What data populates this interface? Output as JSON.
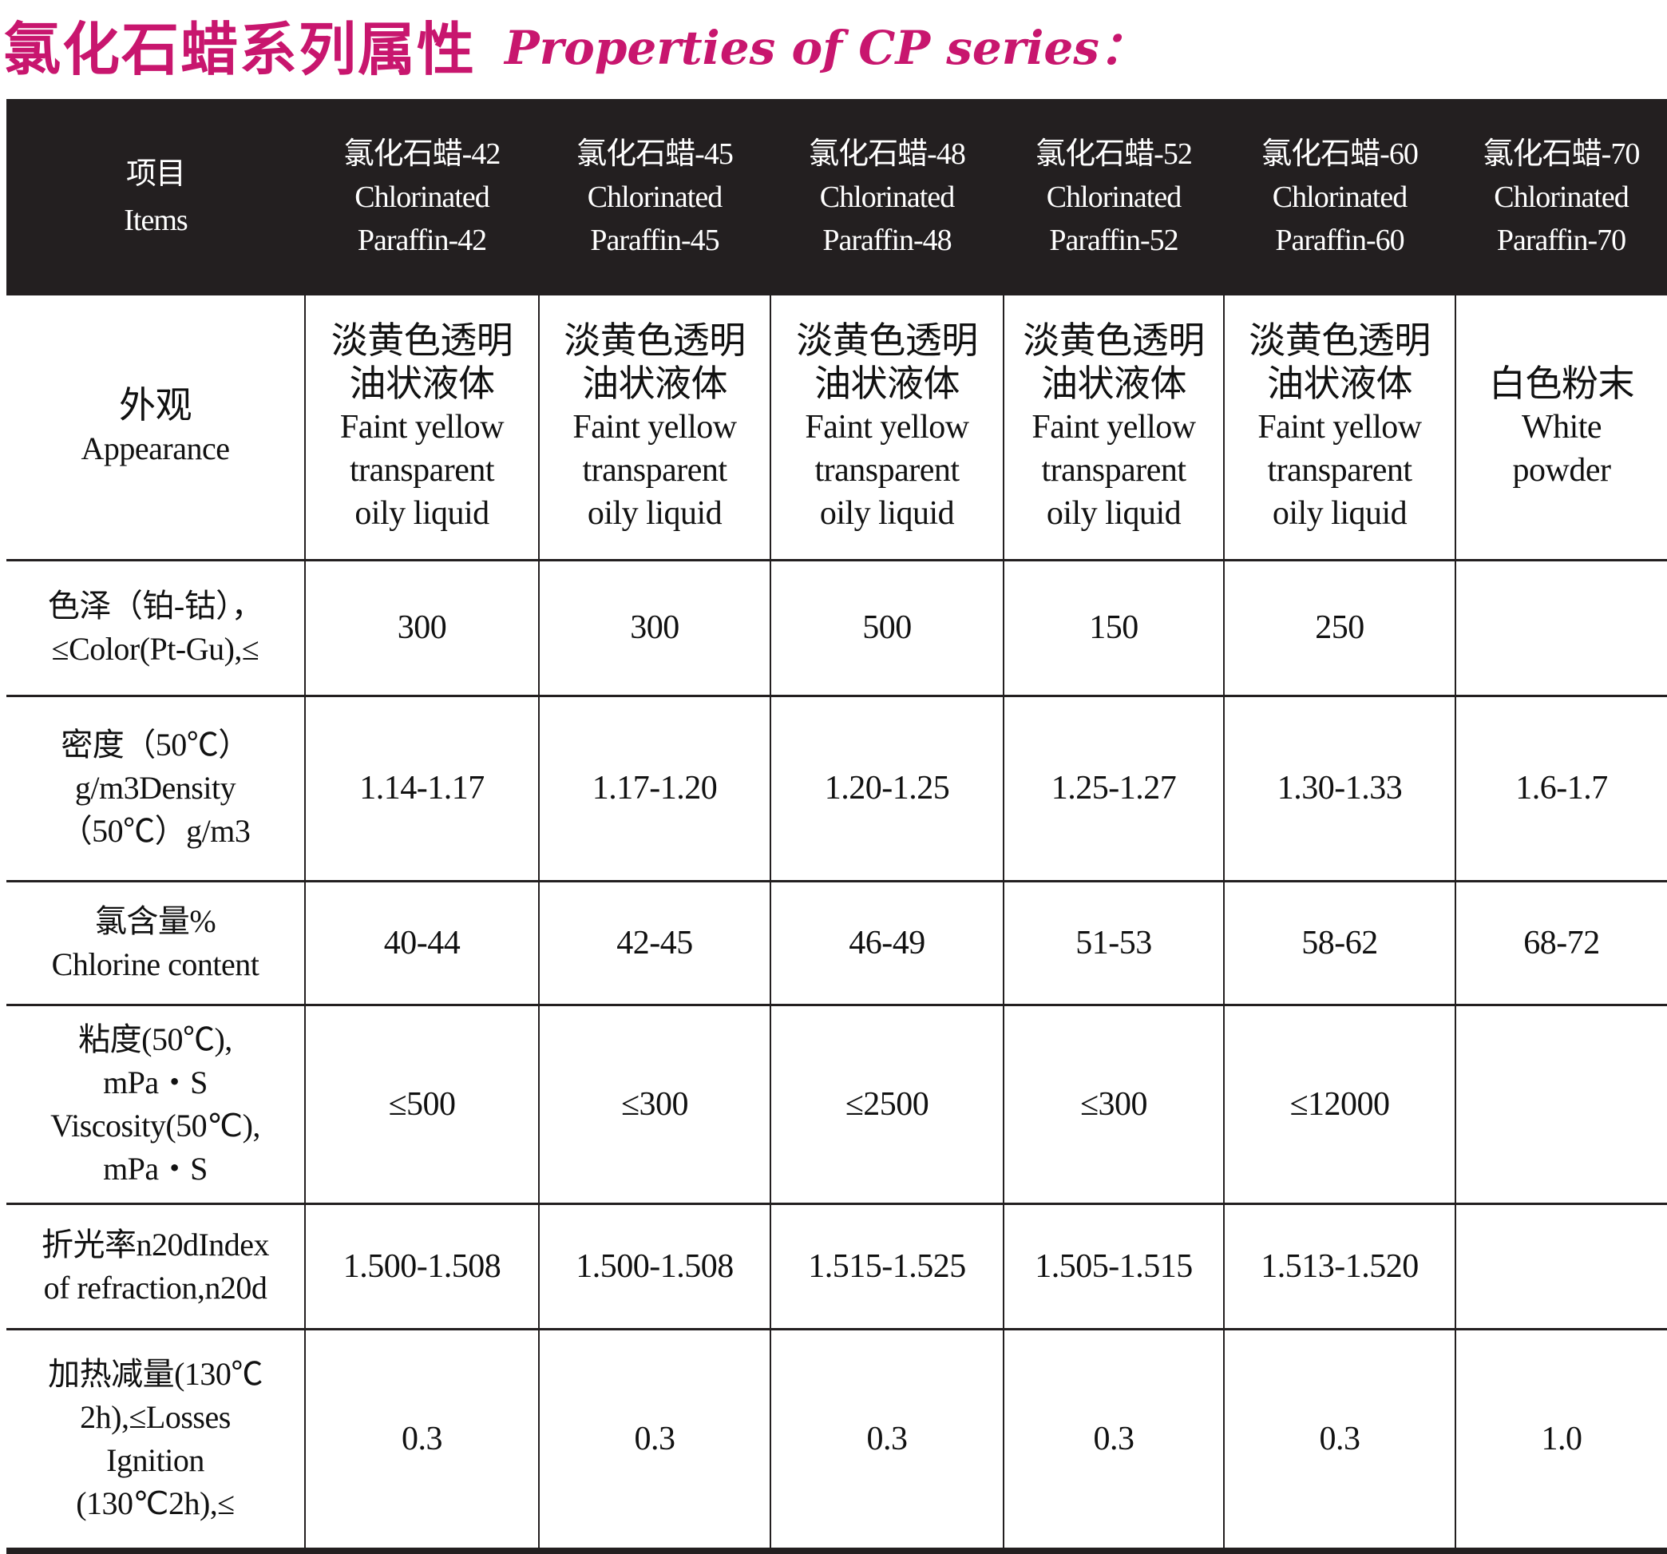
{
  "title": {
    "cn": "氯化石蜡系列属性",
    "en": "Properties of CP series："
  },
  "header": {
    "items": {
      "cn": "项目",
      "en": "Items"
    },
    "products": [
      {
        "cn": "氯化石蜡-42",
        "en1": "Chlorinated",
        "en2": "Paraffin-42"
      },
      {
        "cn": "氯化石蜡-45",
        "en1": "Chlorinated",
        "en2": "Paraffin-45"
      },
      {
        "cn": "氯化石蜡-48",
        "en1": "Chlorinated",
        "en2": "Paraffin-48"
      },
      {
        "cn": "氯化石蜡-52",
        "en1": "Chlorinated",
        "en2": "Paraffin-52"
      },
      {
        "cn": "氯化石蜡-60",
        "en1": "Chlorinated",
        "en2": "Paraffin-60"
      },
      {
        "cn": "氯化石蜡-70",
        "en1": "Chlorinated",
        "en2": "Paraffin-70"
      }
    ]
  },
  "appearance": {
    "label": {
      "cn": "外观",
      "en": "Appearance"
    },
    "liquid": {
      "cn1": "淡黄色透明",
      "cn2": "油状液体",
      "en1": "Faint yellow",
      "en2": "transparent",
      "en3": "oily liquid"
    },
    "powder": {
      "cn": "白色粉末",
      "en1": "White",
      "en2": "powder"
    }
  },
  "rows": {
    "color": {
      "label1": "色泽（铂-钴），",
      "label2": "≤Color(Pt-Gu),≤",
      "values": [
        "300",
        "300",
        "500",
        "150",
        "250",
        ""
      ]
    },
    "density": {
      "label1": "密度（50℃）",
      "label2": "g/m3Density",
      "label3": "（50℃）g/m3",
      "values": [
        "1.14-1.17",
        "1.17-1.20",
        "1.20-1.25",
        "1.25-1.27",
        "1.30-1.33",
        "1.6-1.7"
      ]
    },
    "chlorine": {
      "label1": "氯含量%",
      "label2": "Chlorine content",
      "values": [
        "40-44",
        "42-45",
        "46-49",
        "51-53",
        "58-62",
        "68-72"
      ]
    },
    "viscosity": {
      "label1": "粘度(50℃),",
      "label2": "mPa・S",
      "label3": "Viscosity(50℃),",
      "label4": "mPa・S",
      "values": [
        "≤500",
        "≤300",
        "≤2500",
        "≤300",
        "≤12000",
        ""
      ]
    },
    "refraction": {
      "label1": "折光率n20dIndex",
      "label2": "of refraction,n20d",
      "values": [
        "1.500-1.508",
        "1.500-1.508",
        "1.515-1.525",
        "1.505-1.515",
        "1.513-1.520",
        ""
      ]
    },
    "losses": {
      "label1": "加热减量(130℃",
      "label2": "2h),≤Losses",
      "label3": "Ignition",
      "label4": "(130℃2h),≤",
      "values": [
        "0.3",
        "0.3",
        "0.3",
        "0.3",
        "0.3",
        "1.0"
      ]
    }
  }
}
